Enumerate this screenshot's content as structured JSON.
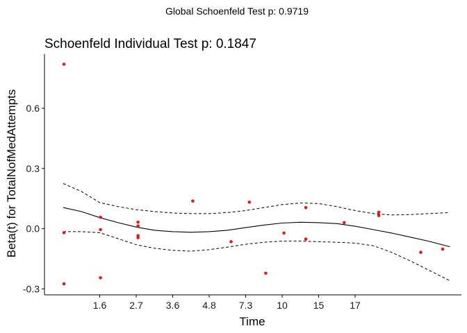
{
  "chart_data": {
    "type": "scatter",
    "supertitle": "Global Schoenfeld Test p: 0.9719",
    "title": "Schoenfeld Individual Test p: 0.1847",
    "xlabel": "Time",
    "ylabel": "Beta(t) for TotalNofMedAttempts",
    "xlim": [
      0.5,
      10.5
    ],
    "ylim": [
      -0.33,
      0.87
    ],
    "x_ticks": [
      {
        "pos": 1,
        "label": "1.6"
      },
      {
        "pos": 2,
        "label": "2.7"
      },
      {
        "pos": 3,
        "label": "3.6"
      },
      {
        "pos": 4,
        "label": "4.8"
      },
      {
        "pos": 5,
        "label": "7.3"
      },
      {
        "pos": 6,
        "label": "10"
      },
      {
        "pos": 7,
        "label": "15"
      },
      {
        "pos": 8,
        "label": "17"
      }
    ],
    "y_ticks": [
      {
        "value": -0.3,
        "label": "-0.3"
      },
      {
        "value": 0.0,
        "label": "0.0"
      },
      {
        "value": 0.3,
        "label": "0.3"
      },
      {
        "value": 0.6,
        "label": "0.6"
      }
    ],
    "points_color": "#e31a1c",
    "points": [
      {
        "x": 0.02,
        "y": 0.82
      },
      {
        "x": 0.02,
        "y": -0.02
      },
      {
        "x": 0.02,
        "y": -0.275
      },
      {
        "x": 1.02,
        "y": 0.057
      },
      {
        "x": 1.02,
        "y": -0.005
      },
      {
        "x": 1.02,
        "y": -0.245
      },
      {
        "x": 2.05,
        "y": 0.032
      },
      {
        "x": 2.05,
        "y": 0.013
      },
      {
        "x": 2.05,
        "y": -0.035
      },
      {
        "x": 2.05,
        "y": -0.045
      },
      {
        "x": 3.55,
        "y": 0.138
      },
      {
        "x": 4.6,
        "y": -0.065
      },
      {
        "x": 5.1,
        "y": 0.132
      },
      {
        "x": 5.55,
        "y": -0.222
      },
      {
        "x": 6.05,
        "y": -0.022
      },
      {
        "x": 6.65,
        "y": 0.105
      },
      {
        "x": 6.65,
        "y": -0.052
      },
      {
        "x": 7.7,
        "y": 0.03
      },
      {
        "x": 8.65,
        "y": 0.082
      },
      {
        "x": 8.65,
        "y": 0.065
      },
      {
        "x": 9.8,
        "y": -0.118
      },
      {
        "x": 10.4,
        "y": -0.102
      }
    ],
    "fit": {
      "x": [
        0.0,
        0.5,
        1.0,
        1.5,
        2.0,
        2.5,
        3.0,
        3.5,
        4.0,
        4.5,
        5.0,
        5.5,
        6.0,
        6.5,
        7.0,
        7.5,
        8.0,
        8.5,
        9.0,
        9.5,
        10.0,
        10.6
      ],
      "y": [
        0.105,
        0.085,
        0.055,
        0.03,
        0.008,
        -0.008,
        -0.015,
        -0.018,
        -0.015,
        -0.008,
        0.005,
        0.018,
        0.028,
        0.032,
        0.03,
        0.025,
        0.012,
        -0.005,
        -0.022,
        -0.042,
        -0.062,
        -0.09
      ],
      "upper": [
        0.225,
        0.185,
        0.13,
        0.11,
        0.095,
        0.085,
        0.078,
        0.075,
        0.075,
        0.08,
        0.09,
        0.105,
        0.12,
        0.128,
        0.125,
        0.11,
        0.09,
        0.075,
        0.068,
        0.07,
        0.075,
        0.08
      ],
      "lower": [
        -0.015,
        -0.015,
        -0.02,
        -0.05,
        -0.08,
        -0.098,
        -0.108,
        -0.112,
        -0.105,
        -0.092,
        -0.078,
        -0.068,
        -0.062,
        -0.062,
        -0.065,
        -0.068,
        -0.072,
        -0.085,
        -0.118,
        -0.16,
        -0.205,
        -0.26
      ]
    }
  }
}
